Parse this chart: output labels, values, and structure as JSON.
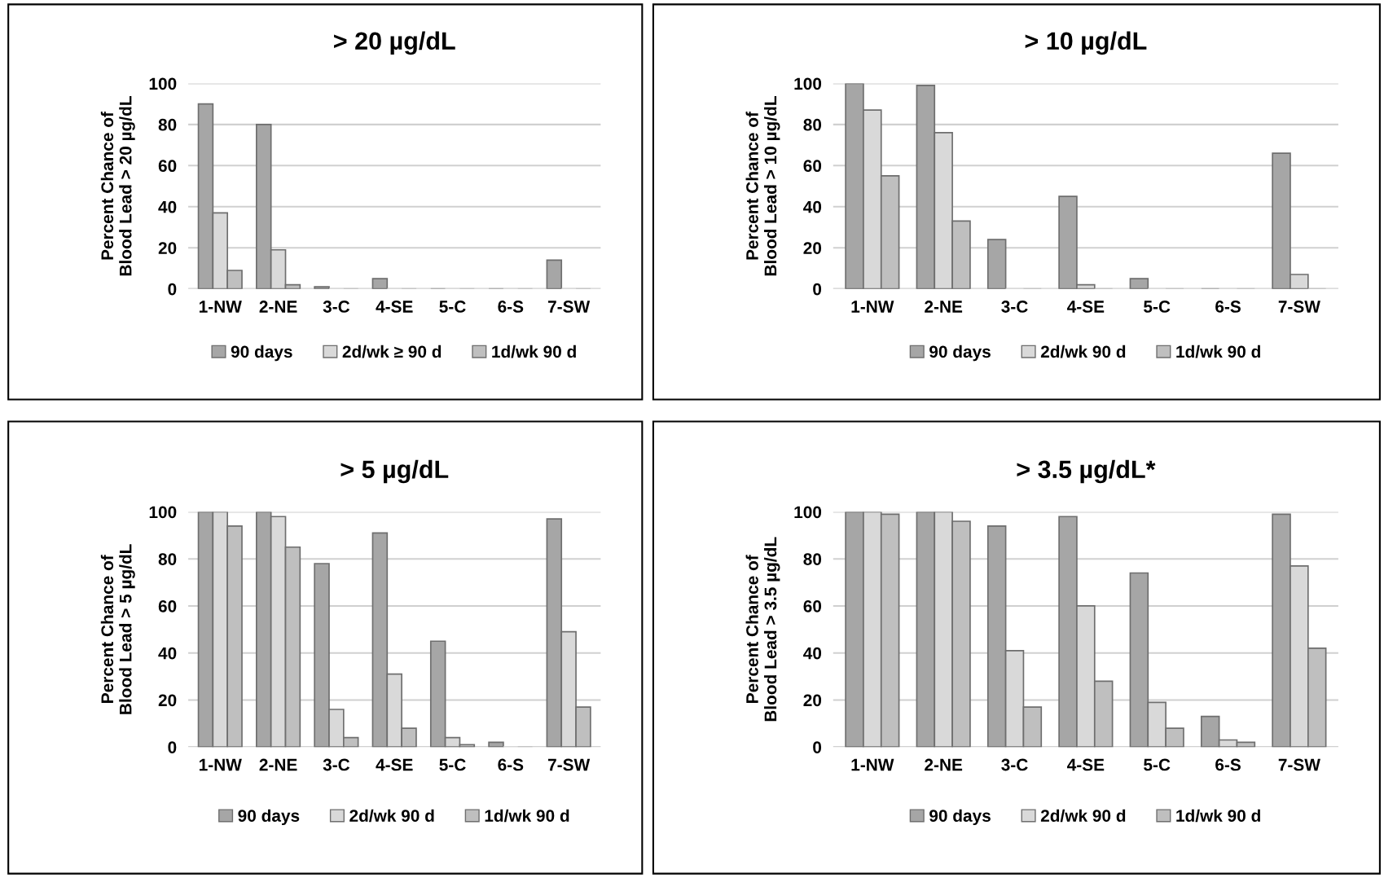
{
  "chart_data": [
    {
      "type": "bar",
      "title": "> 20 µg/dL",
      "ylabel": "Percent Chance of\nBlood Lead > 20 µg/dL",
      "categories": [
        "1-NW",
        "2-NE",
        "3-C",
        "4-SE",
        "5-C",
        "6-S",
        "7-SW"
      ],
      "ylim": [
        0,
        100
      ],
      "yticks": [
        0,
        20,
        40,
        60,
        80,
        100
      ],
      "grid": "y",
      "legend": "bottom",
      "series": [
        {
          "name": "90 days",
          "color": "#a6a6a6",
          "values": [
            90,
            80,
            1,
            5,
            0,
            0,
            14
          ]
        },
        {
          "name": "2d/wk ≥ 90 d",
          "color": "#d9d9d9",
          "values": [
            37,
            19,
            0,
            0,
            0,
            0,
            0
          ]
        },
        {
          "name": "1d/wk 90 d",
          "color": "#bfbfbf",
          "values": [
            9,
            2,
            0,
            0,
            0,
            0,
            0
          ]
        }
      ]
    },
    {
      "type": "bar",
      "title": "> 10 µg/dL",
      "ylabel": "Percent Chance of\nBlood Lead > 10 µg/dL",
      "categories": [
        "1-NW",
        "2-NE",
        "3-C",
        "4-SE",
        "5-C",
        "6-S",
        "7-SW"
      ],
      "ylim": [
        0,
        100
      ],
      "yticks": [
        0,
        20,
        40,
        60,
        80,
        100
      ],
      "grid": "y",
      "legend": "bottom",
      "series": [
        {
          "name": "90 days",
          "color": "#a6a6a6",
          "values": [
            100,
            99,
            24,
            45,
            5,
            0,
            66
          ]
        },
        {
          "name": "2d/wk 90 d",
          "color": "#d9d9d9",
          "values": [
            87,
            76,
            0,
            2,
            0,
            0,
            7
          ]
        },
        {
          "name": "1d/wk 90 d",
          "color": "#bfbfbf",
          "values": [
            55,
            33,
            0,
            0,
            0,
            0,
            0
          ]
        }
      ]
    },
    {
      "type": "bar",
      "title": "> 5 µg/dL",
      "ylabel": "Percent Chance of\nBlood Lead > 5 µg/dL",
      "categories": [
        "1-NW",
        "2-NE",
        "3-C",
        "4-SE",
        "5-C",
        "6-S",
        "7-SW"
      ],
      "ylim": [
        0,
        100
      ],
      "yticks": [
        0,
        20,
        40,
        60,
        80,
        100
      ],
      "grid": "y",
      "legend": "bottom",
      "series": [
        {
          "name": "90 days",
          "color": "#a6a6a6",
          "values": [
            100,
            100,
            78,
            91,
            45,
            2,
            97
          ]
        },
        {
          "name": "2d/wk 90 d",
          "color": "#d9d9d9",
          "values": [
            100,
            98,
            16,
            31,
            4,
            0,
            49
          ]
        },
        {
          "name": "1d/wk 90 d",
          "color": "#bfbfbf",
          "values": [
            94,
            85,
            4,
            8,
            1,
            0,
            17
          ]
        }
      ]
    },
    {
      "type": "bar",
      "title": "> 3.5 µg/dL*",
      "ylabel": "Percent Chance of\nBlood Lead > 3.5 µg/dL",
      "categories": [
        "1-NW",
        "2-NE",
        "3-C",
        "4-SE",
        "5-C",
        "6-S",
        "7-SW"
      ],
      "ylim": [
        0,
        100
      ],
      "yticks": [
        0,
        20,
        40,
        60,
        80,
        100
      ],
      "grid": "y",
      "legend": "bottom",
      "series": [
        {
          "name": "90 days",
          "color": "#a6a6a6",
          "values": [
            100,
            100,
            94,
            98,
            74,
            13,
            99
          ]
        },
        {
          "name": "2d/wk 90 d",
          "color": "#d9d9d9",
          "values": [
            100,
            100,
            41,
            60,
            19,
            3,
            77
          ]
        },
        {
          "name": "1d/wk 90 d",
          "color": "#bfbfbf",
          "values": [
            99,
            96,
            17,
            28,
            8,
            2,
            42
          ]
        }
      ]
    }
  ]
}
